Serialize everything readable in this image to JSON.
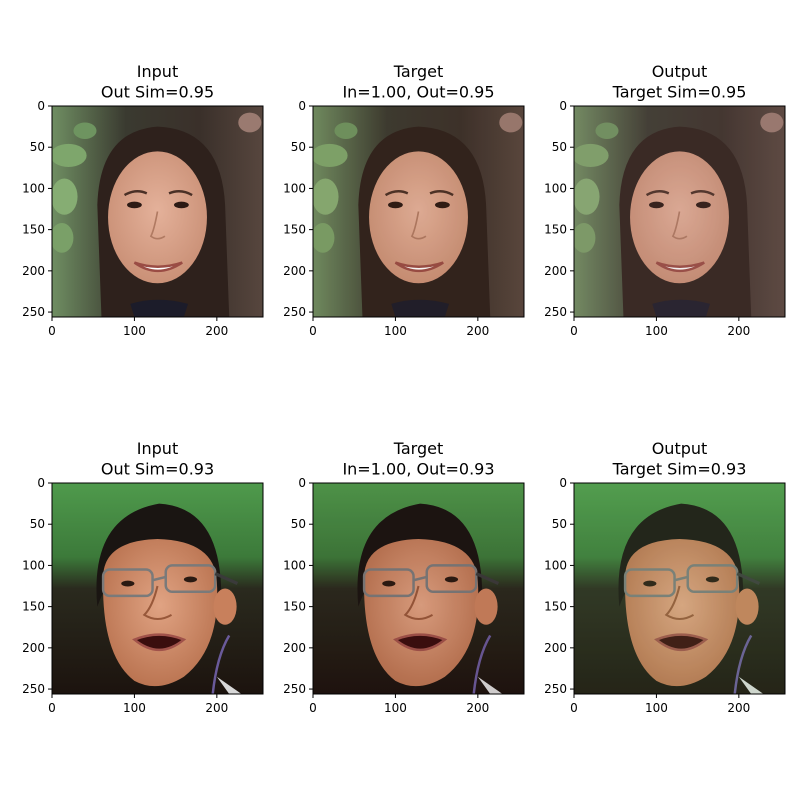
{
  "chart_data": [
    {
      "type": "image",
      "title_lines": [
        "Input",
        "Out Sim=0.95"
      ],
      "image": "face-woman-original",
      "xlim": [
        0,
        256
      ],
      "ylim": [
        256,
        0
      ],
      "xticks": [
        0,
        100,
        200
      ],
      "yticks": [
        0,
        50,
        100,
        150,
        200,
        250
      ]
    },
    {
      "type": "image",
      "title_lines": [
        "Target",
        "In=1.00, Out=0.95"
      ],
      "image": "face-woman-target",
      "xlim": [
        0,
        256
      ],
      "ylim": [
        256,
        0
      ],
      "xticks": [
        0,
        100,
        200
      ],
      "yticks": [
        0,
        50,
        100,
        150,
        200,
        250
      ]
    },
    {
      "type": "image",
      "title_lines": [
        "Output",
        "Target Sim=0.95"
      ],
      "image": "face-woman-output",
      "xlim": [
        0,
        256
      ],
      "ylim": [
        256,
        0
      ],
      "xticks": [
        0,
        100,
        200
      ],
      "yticks": [
        0,
        50,
        100,
        150,
        200,
        250
      ]
    },
    {
      "type": "image",
      "title_lines": [
        "Input",
        "Out Sim=0.93"
      ],
      "image": "face-man-original",
      "xlim": [
        0,
        256
      ],
      "ylim": [
        256,
        0
      ],
      "xticks": [
        0,
        100,
        200
      ],
      "yticks": [
        0,
        50,
        100,
        150,
        200,
        250
      ]
    },
    {
      "type": "image",
      "title_lines": [
        "Target",
        "In=1.00, Out=0.93"
      ],
      "image": "face-man-target",
      "xlim": [
        0,
        256
      ],
      "ylim": [
        256,
        0
      ],
      "xticks": [
        0,
        100,
        200
      ],
      "yticks": [
        0,
        50,
        100,
        150,
        200,
        250
      ]
    },
    {
      "type": "image",
      "title_lines": [
        "Output",
        "Target Sim=0.93"
      ],
      "image": "face-man-output",
      "xlim": [
        0,
        256
      ],
      "ylim": [
        256,
        0
      ],
      "xticks": [
        0,
        100,
        200
      ],
      "yticks": [
        0,
        50,
        100,
        150,
        200,
        250
      ]
    }
  ]
}
